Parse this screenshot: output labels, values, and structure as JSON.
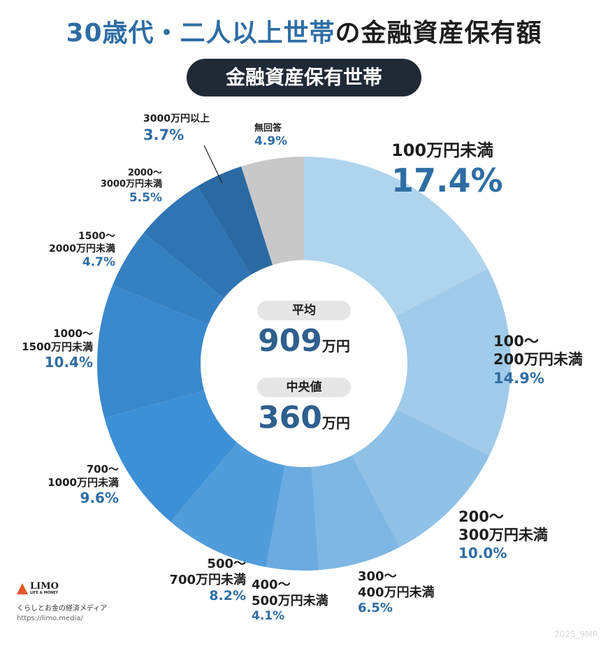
{
  "title": {
    "part1": "30歳代・二人以上世帯",
    "part2": "の金融資産保有額"
  },
  "subtitle": "金融資産保有世帯",
  "center": {
    "mean_label": "平均",
    "mean_value": "909",
    "mean_unit": "万円",
    "median_label": "中央値",
    "median_value": "360",
    "median_unit": "万円"
  },
  "chart_data": {
    "type": "pie",
    "donut": true,
    "start": "top, clockwise",
    "categories": [
      "100万円未満",
      "100〜200万円未満",
      "200〜300万円未満",
      "300〜400万円未満",
      "400〜500万円未満",
      "500〜700万円未満",
      "700〜1000万円未満",
      "1000〜1500万円未満",
      "1500〜2000万円未満",
      "2000〜3000万円未満",
      "3000万円以上",
      "無回答"
    ],
    "values": [
      17.4,
      14.9,
      10.0,
      6.5,
      4.1,
      8.2,
      9.6,
      10.4,
      4.7,
      5.5,
      3.7,
      4.9
    ],
    "labels": [
      "17.4%",
      "14.9%",
      "10.0%",
      "6.5%",
      "4.1%",
      "8.2%",
      "9.6%",
      "10.4%",
      "4.7%",
      "5.5%",
      "3.7%",
      "4.9%"
    ],
    "colors": [
      "#b0d4ee",
      "#a1cbea",
      "#90c1e7",
      "#7eb7e3",
      "#6cabdf",
      "#519cdb",
      "#3d90d6",
      "#3a88cc",
      "#3580c1",
      "#2f75b3",
      "#2a69a1",
      "#c8c8c8"
    ]
  },
  "label_lines": {
    "c0": [
      "100万円未満"
    ],
    "c1": [
      "100〜",
      "200万円未満"
    ],
    "c2": [
      "200〜",
      "300万円未満"
    ],
    "c3": [
      "300〜",
      "400万円未満"
    ],
    "c4": [
      "400〜",
      "500万円未満"
    ],
    "c5": [
      "500〜",
      "700万円未満"
    ],
    "c6": [
      "700〜",
      "1000万円未満"
    ],
    "c7": [
      "1000〜",
      "1500万円未満"
    ],
    "c8": [
      "1500〜",
      "2000万円未満"
    ],
    "c9": [
      "2000〜",
      "3000万円未満"
    ],
    "c10": [
      "3000万円以上"
    ],
    "c11": [
      "無回答"
    ]
  },
  "logo": {
    "name": "LIMO",
    "tagline": "LIFE & MONEY",
    "description": "くらしとお金の経済メディア",
    "url": "https://limo.media/"
  },
  "watermark": "2025_9MR"
}
